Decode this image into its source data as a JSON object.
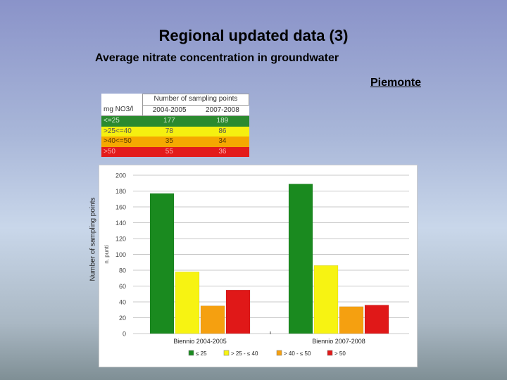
{
  "slide": {
    "title": "Regional updated data (3)",
    "subtitle": "Average nitrate concentration in groundwater",
    "region": "Piemonte"
  },
  "table": {
    "group_header": "Number of sampling points",
    "unit_header": "mg NO3/l",
    "col_headers": [
      "2004-2005",
      "2007-2008"
    ],
    "rows": [
      {
        "label": "<=25",
        "v1": "177",
        "v2": "189"
      },
      {
        "label": ">25<=40",
        "v1": "78",
        "v2": "86"
      },
      {
        "label": ">40<=50",
        "v1": "35",
        "v2": "34"
      },
      {
        "label": ">50",
        "v1": "55",
        "v2": "36"
      }
    ],
    "row_colors": [
      "#2b8a2f",
      "#f5f010",
      "#f5a800",
      "#e31b1b"
    ]
  },
  "chart_data": {
    "type": "bar",
    "categories": [
      "Biennio 2004-2005",
      "Biennio 2007-2008"
    ],
    "series": [
      {
        "name": "≤ 25",
        "color": "#1a8a1f",
        "values": [
          177,
          189
        ]
      },
      {
        "name": "> 25 - ≤ 40",
        "color": "#f7f312",
        "values": [
          78,
          86
        ]
      },
      {
        "name": "> 40 - ≤ 50",
        "color": "#f5a010",
        "values": [
          35,
          34
        ]
      },
      {
        "name": "> 50",
        "color": "#e01818",
        "values": [
          55,
          36
        ]
      }
    ],
    "yticks": [
      0,
      20,
      40,
      60,
      80,
      100,
      120,
      140,
      160,
      180,
      200
    ],
    "ylim": [
      0,
      200
    ],
    "ylabel_inner": "n. punti",
    "ylabel_outer": "Number of sampling points",
    "legend_position": "bottom"
  }
}
